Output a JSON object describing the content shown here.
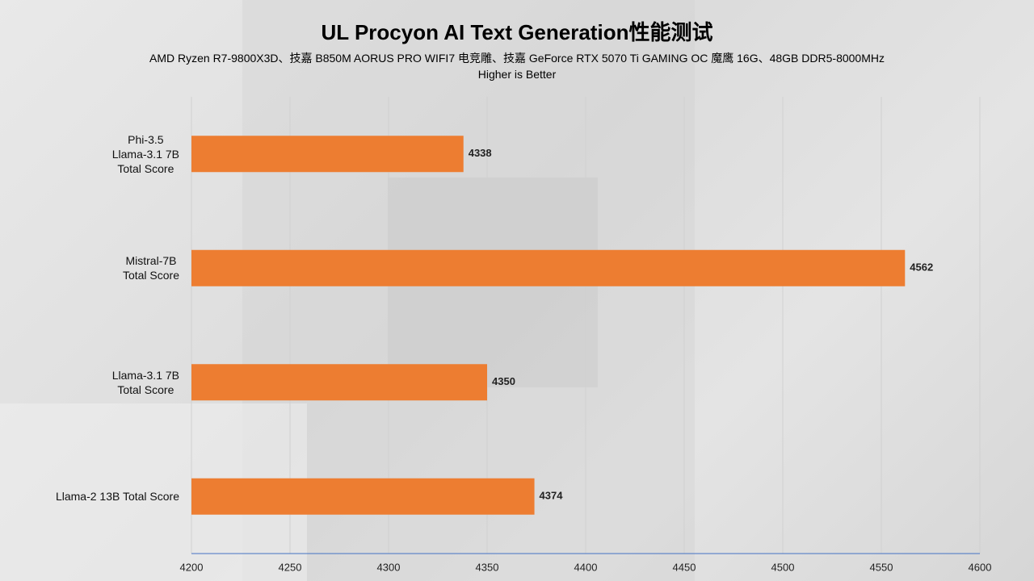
{
  "chart_data": {
    "type": "bar",
    "orientation": "horizontal",
    "title": "UL Procyon AI Text Generation性能测试",
    "subtitle": "AMD Ryzen R7-9800X3D、技嘉 B850M AORUS PRO WIFI7 电竞雕、技嘉 GeForce RTX 5070 Ti GAMING OC 魔鹰 16G、48GB DDR5-8000MHz",
    "note": "Higher is Better",
    "categories": [
      "Phi-3.5\nLlama-3.1 7B\nTotal Score",
      "Mistral-7B\nTotal Score",
      "Llama-3.1 7B\nTotal Score",
      "Llama-2 13B Total Score"
    ],
    "values": [
      4338,
      4562,
      4350,
      4374
    ],
    "color": "#ed7d31",
    "xlim": [
      4200,
      4600
    ],
    "xticks": [
      4200,
      4250,
      4300,
      4350,
      4400,
      4450,
      4500,
      4550,
      4600
    ],
    "grid": true
  }
}
